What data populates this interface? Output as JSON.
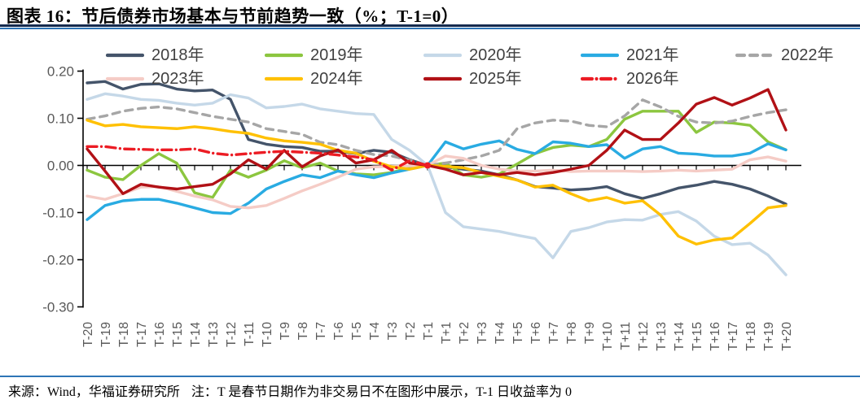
{
  "chart_data": {
    "type": "line",
    "title": "图表 16：节后债券市场基本与节前趋势一致（%；T-1=0）",
    "xlabel": "",
    "ylabel": "",
    "ylim": [
      -0.3,
      0.2
    ],
    "y_ticks": [
      "0.20",
      "0.10",
      "0.00",
      "-0.10",
      "-0.20",
      "-0.30"
    ],
    "grid": false,
    "legend_position": "top-two-rows",
    "x": [
      "T-20",
      "T-19",
      "T-18",
      "T-17",
      "T-16",
      "T-15",
      "T-14",
      "T-13",
      "T-12",
      "T-11",
      "T-10",
      "T-9",
      "T-8",
      "T-7",
      "T-6",
      "T-5",
      "T-4",
      "T-3",
      "T-2",
      "T-1",
      "T+1",
      "T+2",
      "T+3",
      "T+4",
      "T+5",
      "T+6",
      "T+7",
      "T+8",
      "T+9",
      "T+10",
      "T+11",
      "T+12",
      "T+13",
      "T+14",
      "T+15",
      "T+16",
      "T+17",
      "T+18",
      "T+19",
      "T+20"
    ],
    "series": [
      {
        "name": "2018年",
        "color": "#44546A",
        "style": "solid",
        "values": [
          0.175,
          0.178,
          0.162,
          0.172,
          0.173,
          0.162,
          0.158,
          0.16,
          0.14,
          0.055,
          0.045,
          0.04,
          0.038,
          0.03,
          0.03,
          0.025,
          0.032,
          0.028,
          0.012,
          0,
          -0.003,
          -0.008,
          -0.012,
          -0.02,
          -0.031,
          -0.045,
          -0.048,
          -0.052,
          -0.05,
          -0.045,
          -0.06,
          -0.07,
          -0.06,
          -0.048,
          -0.042,
          -0.034,
          -0.04,
          -0.05,
          -0.065,
          -0.082
        ]
      },
      {
        "name": "2019年",
        "color": "#8CC63F",
        "style": "solid",
        "values": [
          -0.01,
          -0.025,
          -0.03,
          0.0,
          0.025,
          0.005,
          -0.058,
          -0.068,
          -0.01,
          -0.025,
          -0.01,
          0.01,
          -0.005,
          0.005,
          -0.012,
          -0.018,
          -0.02,
          -0.015,
          -0.005,
          0,
          0.005,
          -0.02,
          -0.025,
          -0.018,
          0.003,
          0.025,
          0.038,
          0.043,
          0.04,
          0.055,
          0.098,
          0.115,
          0.115,
          0.115,
          0.07,
          0.092,
          0.09,
          0.085,
          0.05,
          0.033
        ]
      },
      {
        "name": "2020年",
        "color": "#C5D8E8",
        "style": "solid",
        "values": [
          0.14,
          0.152,
          0.147,
          0.14,
          0.138,
          0.132,
          0.128,
          0.132,
          0.15,
          0.143,
          0.122,
          0.125,
          0.13,
          0.12,
          0.115,
          0.11,
          0.108,
          0.055,
          0.032,
          0,
          -0.1,
          -0.13,
          -0.135,
          -0.14,
          -0.148,
          -0.155,
          -0.196,
          -0.14,
          -0.132,
          -0.12,
          -0.115,
          -0.116,
          -0.104,
          -0.098,
          -0.118,
          -0.15,
          -0.168,
          -0.165,
          -0.19,
          -0.232
        ]
      },
      {
        "name": "2021年",
        "color": "#29ABE2",
        "style": "solid",
        "values": [
          -0.115,
          -0.085,
          -0.075,
          -0.072,
          -0.072,
          -0.08,
          -0.09,
          -0.1,
          -0.102,
          -0.08,
          -0.05,
          -0.034,
          -0.02,
          -0.026,
          -0.012,
          -0.02,
          -0.026,
          -0.016,
          -0.008,
          0,
          0.05,
          0.035,
          0.045,
          0.052,
          0.034,
          0.025,
          0.05,
          0.047,
          0.04,
          0.044,
          0.015,
          0.035,
          0.04,
          0.026,
          0.024,
          0.02,
          0.02,
          0.026,
          0.046,
          0.033
        ]
      },
      {
        "name": "2022年",
        "color": "#A6A6A6",
        "style": "dashed",
        "values": [
          0.098,
          0.105,
          0.115,
          0.121,
          0.124,
          0.12,
          0.112,
          0.104,
          0.098,
          0.092,
          0.078,
          0.072,
          0.066,
          0.049,
          0.044,
          0.032,
          0.023,
          0.02,
          0.011,
          0,
          0.005,
          0.012,
          0.02,
          0.032,
          0.078,
          0.09,
          0.096,
          0.094,
          0.085,
          0.082,
          0.105,
          0.139,
          0.124,
          0.104,
          0.092,
          0.09,
          0.094,
          0.104,
          0.112,
          0.118
        ]
      },
      {
        "name": "2023年",
        "color": "#F5CCC6",
        "style": "solid",
        "values": [
          -0.065,
          -0.072,
          -0.06,
          -0.046,
          -0.045,
          -0.055,
          -0.065,
          -0.073,
          -0.087,
          -0.09,
          -0.085,
          -0.07,
          -0.054,
          -0.04,
          -0.025,
          -0.008,
          -0.003,
          -0.002,
          -0.001,
          0,
          0.02,
          0.015,
          0.0,
          -0.008,
          -0.012,
          -0.012,
          -0.01,
          -0.013,
          -0.012,
          -0.012,
          -0.012,
          -0.013,
          -0.012,
          -0.01,
          -0.012,
          -0.01,
          -0.008,
          0.012,
          0.018,
          0.009
        ]
      },
      {
        "name": "2024年",
        "color": "#FFC000",
        "style": "solid",
        "values": [
          0.096,
          0.084,
          0.087,
          0.082,
          0.08,
          0.078,
          0.082,
          0.078,
          0.072,
          0.068,
          0.058,
          0.052,
          0.049,
          0.045,
          0.032,
          0.026,
          0.009,
          -0.003,
          -0.008,
          0,
          -0.002,
          -0.005,
          -0.015,
          -0.023,
          -0.031,
          -0.046,
          -0.042,
          -0.06,
          -0.075,
          -0.068,
          -0.08,
          -0.075,
          -0.105,
          -0.15,
          -0.167,
          -0.158,
          -0.154,
          -0.123,
          -0.09,
          -0.085
        ]
      },
      {
        "name": "2025年",
        "color": "#B11116",
        "style": "solid",
        "values": [
          0.035,
          -0.012,
          -0.06,
          -0.04,
          -0.046,
          -0.05,
          -0.045,
          -0.04,
          -0.018,
          0.012,
          -0.008,
          0.032,
          -0.003,
          0.02,
          0.033,
          0.005,
          0.012,
          0.032,
          0.005,
          0,
          -0.008,
          -0.02,
          -0.015,
          -0.02,
          -0.015,
          -0.02,
          -0.015,
          -0.008,
          0.0,
          0.032,
          0.075,
          0.055,
          0.055,
          0.09,
          0.13,
          0.144,
          0.128,
          0.143,
          0.161,
          0.075
        ]
      },
      {
        "name": "2026年",
        "color": "#EC1C24",
        "style": "dash-dot",
        "values": [
          0.04,
          0.04,
          0.035,
          0.034,
          0.033,
          0.033,
          0.035,
          0.026,
          0.022,
          0.025,
          0.028,
          0.03,
          0.028,
          0.026,
          0.022,
          0.018,
          0.012,
          -0.01,
          0.01,
          0,
          null,
          null,
          null,
          null,
          null,
          null,
          null,
          null,
          null,
          null,
          null,
          null,
          null,
          null,
          null,
          null,
          null,
          null,
          null,
          null
        ]
      }
    ]
  },
  "footer": {
    "source": "来源：Wind，华福证券研究所",
    "note": "注：T 是春节日期作为非交易日不在图形中展示，T-1 日收益率为 0"
  }
}
